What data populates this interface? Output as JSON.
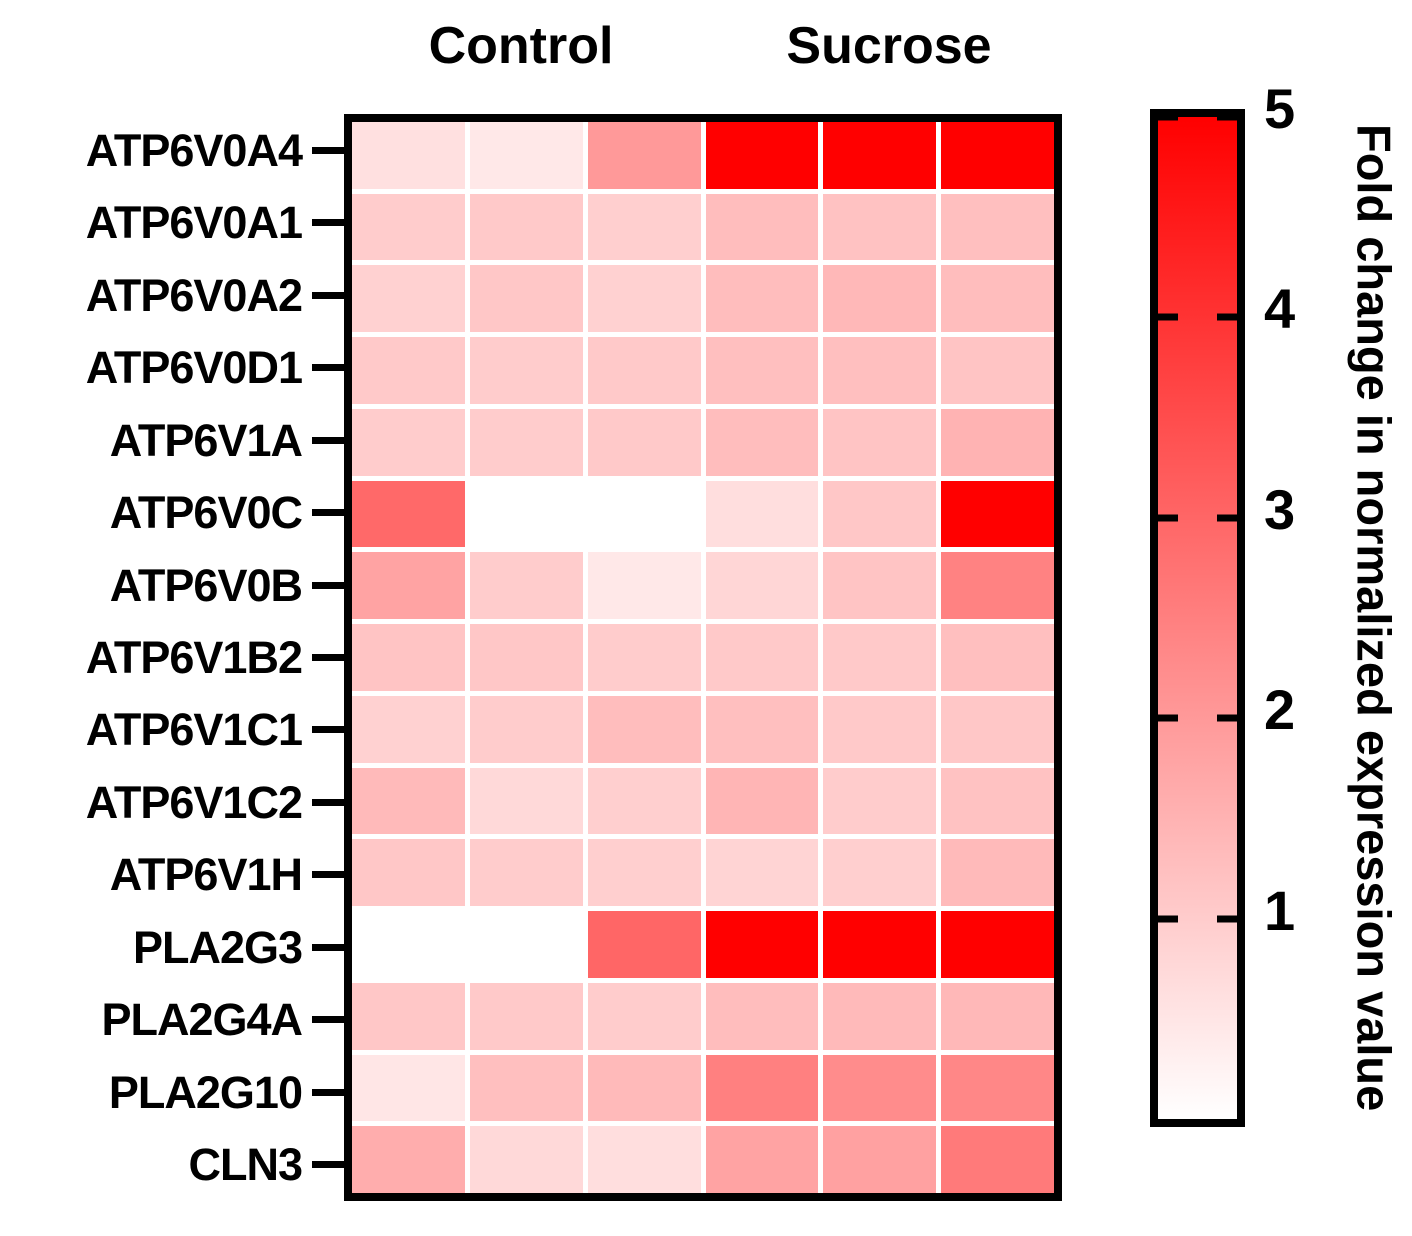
{
  "chart_data": {
    "type": "heatmap",
    "title": "",
    "column_groups": [
      {
        "label": "Control",
        "n_columns": 3
      },
      {
        "label": "Sucrose",
        "n_columns": 3
      }
    ],
    "rows": [
      "ATP6V0A4",
      "ATP6V0A1",
      "ATP6V0A2",
      "ATP6V0D1",
      "ATP6V1A",
      "ATP6V0C",
      "ATP6V0B",
      "ATP6V1B2",
      "ATP6V1C1",
      "ATP6V1C2",
      "ATP6V1H",
      "PLA2G3",
      "PLA2G4A",
      "PLA2G10",
      "CLN3"
    ],
    "values": [
      [
        0.6,
        0.45,
        2.0,
        5.0,
        5.0,
        5.0
      ],
      [
        1.0,
        1.05,
        0.95,
        1.3,
        1.2,
        1.25
      ],
      [
        0.9,
        1.1,
        0.9,
        1.3,
        1.4,
        1.3
      ],
      [
        1.05,
        1.0,
        1.05,
        1.25,
        1.25,
        1.15
      ],
      [
        1.0,
        1.0,
        1.05,
        1.3,
        1.15,
        1.5
      ],
      [
        2.95,
        0.0,
        0.0,
        0.65,
        1.1,
        5.0
      ],
      [
        1.8,
        1.0,
        0.45,
        0.8,
        1.15,
        2.45
      ],
      [
        1.15,
        1.1,
        1.0,
        1.05,
        1.05,
        1.25
      ],
      [
        0.9,
        1.0,
        1.3,
        1.25,
        1.05,
        1.1
      ],
      [
        1.35,
        0.75,
        0.95,
        1.45,
        1.0,
        1.2
      ],
      [
        1.1,
        1.0,
        0.95,
        0.85,
        0.95,
        1.35
      ],
      [
        0.0,
        0.0,
        3.0,
        5.0,
        5.0,
        5.0
      ],
      [
        1.1,
        1.05,
        1.0,
        1.3,
        1.35,
        1.4
      ],
      [
        0.5,
        1.25,
        1.35,
        2.5,
        2.25,
        2.35
      ],
      [
        1.6,
        0.75,
        0.65,
        1.8,
        1.85,
        2.6
      ]
    ],
    "colorbar": {
      "label": "Fold change in normalized expression value",
      "range": [
        0,
        5
      ],
      "ticks": [
        5,
        4,
        3,
        2,
        1
      ],
      "low_color": "#ffffff",
      "high_color": "#ff0000"
    },
    "layout": {
      "grid": "white gridlines between cells",
      "cell_border_frame": "#000000",
      "legend_position": "right colorbar"
    }
  }
}
